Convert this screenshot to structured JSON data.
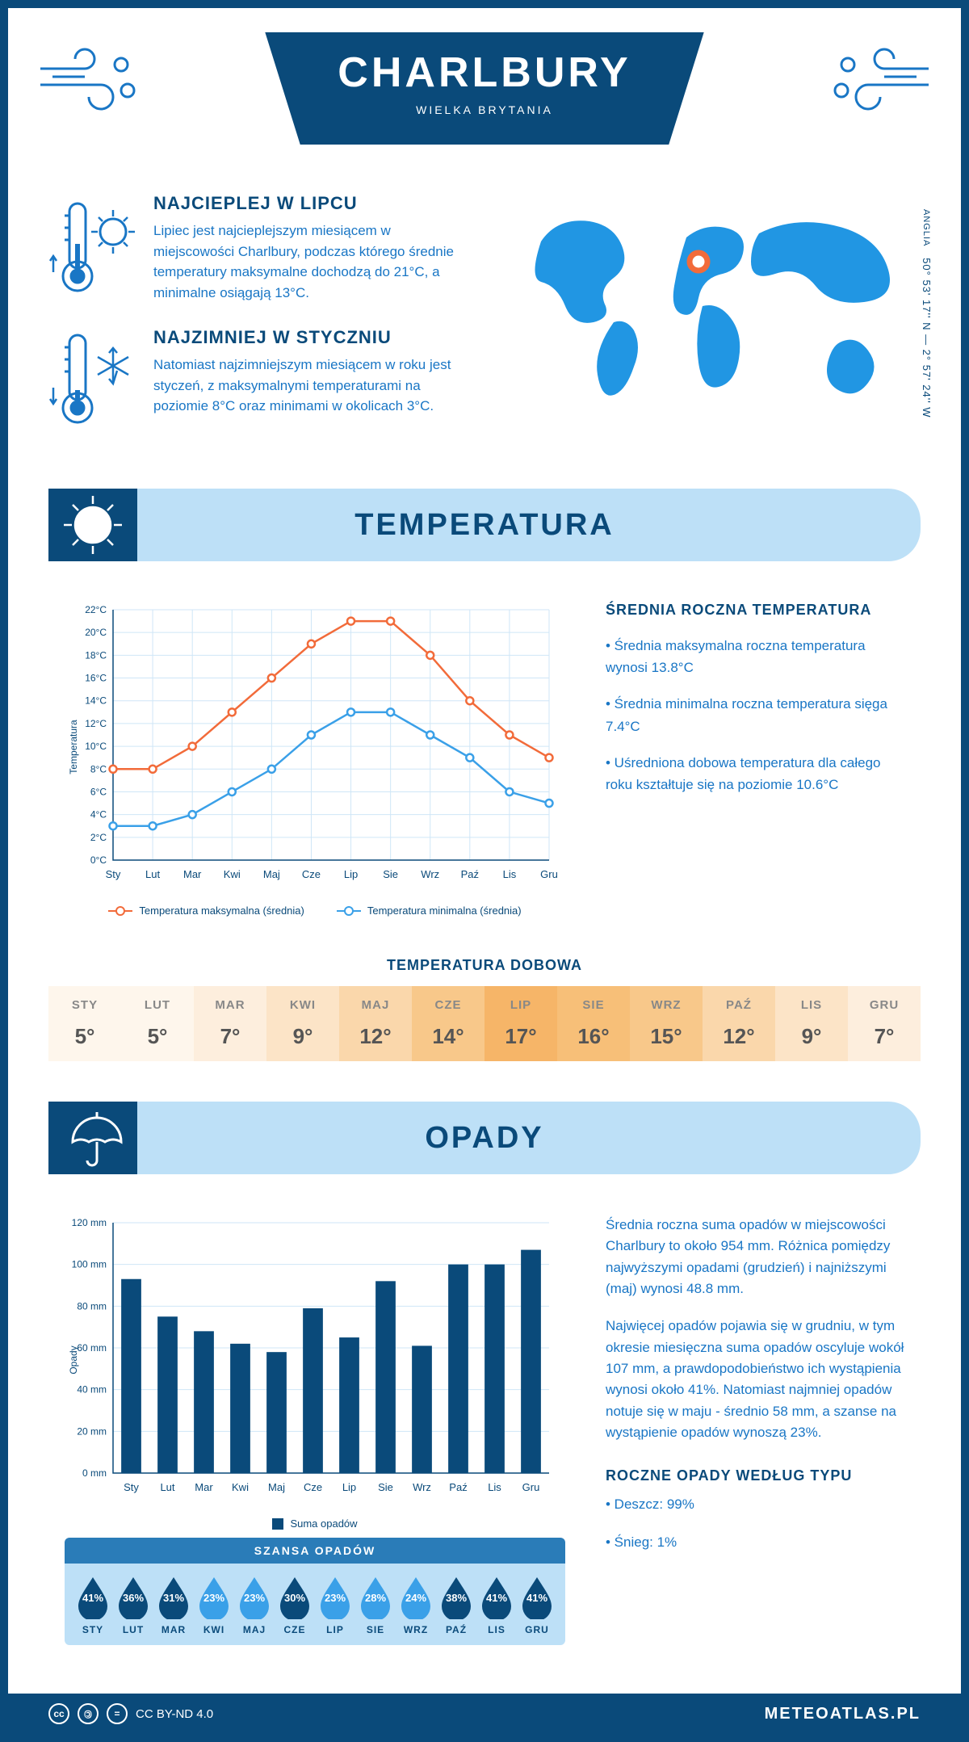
{
  "header": {
    "title": "CHARLBURY",
    "subtitle": "WIELKA BRYTANIA"
  },
  "coords": {
    "text": "50° 53' 17'' N — 2° 57' 24'' W",
    "region": "ANGLIA"
  },
  "warm": {
    "title": "NAJCIEPLEJ W LIPCU",
    "body": "Lipiec jest najcieplejszym miesiącem w miejscowości Charlbury, podczas którego średnie temperatury maksymalne dochodzą do 21°C, a minimalne osiągają 13°C."
  },
  "cold": {
    "title": "NAJZIMNIEJ W STYCZNIU",
    "body": "Natomiast najzimniejszym miesiącem w roku jest styczeń, z maksymalnymi temperaturami na poziomie 8°C oraz minimami w okolicach 3°C."
  },
  "section_temp": "TEMPERATURA",
  "section_precip": "OPADY",
  "months_short": [
    "Sty",
    "Lut",
    "Mar",
    "Kwi",
    "Maj",
    "Cze",
    "Lip",
    "Sie",
    "Wrz",
    "Paź",
    "Lis",
    "Gru"
  ],
  "months_upper": [
    "STY",
    "LUT",
    "MAR",
    "KWI",
    "MAJ",
    "CZE",
    "LIP",
    "SIE",
    "WRZ",
    "PAŹ",
    "LIS",
    "GRU"
  ],
  "temp_chart": {
    "type": "line",
    "y_label": "Temperatura",
    "y_min": 0,
    "y_max": 22,
    "y_step": 2,
    "y_suffix": "°C",
    "series_max": {
      "label": "Temperatura maksymalna (średnia)",
      "color": "#f26b3a",
      "values": [
        8,
        8,
        10,
        13,
        16,
        19,
        21,
        21,
        18,
        14,
        11,
        9
      ]
    },
    "series_min": {
      "label": "Temperatura minimalna (średnia)",
      "color": "#3aa0e8",
      "values": [
        3,
        3,
        4,
        6,
        8,
        11,
        13,
        13,
        11,
        9,
        6,
        5
      ]
    },
    "grid_color": "#cfe6f7",
    "axis_color": "#0a4a7a"
  },
  "temp_stats": {
    "title": "ŚREDNIA ROCZNA TEMPERATURA",
    "lines": [
      "• Średnia maksymalna roczna temperatura wynosi 13.8°C",
      "• Średnia minimalna roczna temperatura sięga 7.4°C",
      "• Uśredniona dobowa temperatura dla całego roku kształtuje się na poziomie 10.6°C"
    ]
  },
  "daily_temp": {
    "title": "TEMPERATURA DOBOWA",
    "values": [
      5,
      5,
      7,
      9,
      12,
      14,
      17,
      16,
      15,
      12,
      9,
      7
    ],
    "suffix": "°",
    "cell_colors": [
      "#fef6ec",
      "#fef6ec",
      "#fdeedd",
      "#fce4c7",
      "#fad7ab",
      "#f8c88a",
      "#f6b568",
      "#f7bf78",
      "#f8c88a",
      "#fad7ab",
      "#fce4c7",
      "#fdeedd"
    ]
  },
  "precip_chart": {
    "type": "bar",
    "y_label": "Opady",
    "y_min": 0,
    "y_max": 120,
    "y_step": 20,
    "y_suffix": " mm",
    "values": [
      93,
      75,
      68,
      62,
      58,
      79,
      65,
      92,
      61,
      100,
      100,
      107
    ],
    "bar_color": "#0a4a7a",
    "grid_color": "#cfe6f7",
    "legend": "Suma opadów"
  },
  "precip_text": {
    "p1": "Średnia roczna suma opadów w miejscowości Charlbury to około 954 mm. Różnica pomiędzy najwyższymi opadami (grudzień) i najniższymi (maj) wynosi 48.8 mm.",
    "p2": "Najwięcej opadów pojawia się w grudniu, w tym okresie miesięczna suma opadów oscyluje wokół 107 mm, a prawdopodobieństwo ich wystąpienia wynosi około 41%. Natomiast najmniej opadów notuje się w maju - średnio 58 mm, a szanse na wystąpienie opadów wynoszą 23%.",
    "type_title": "ROCZNE OPADY WEDŁUG TYPU",
    "type_lines": [
      "• Deszcz: 99%",
      "• Śnieg: 1%"
    ]
  },
  "chance": {
    "title": "SZANSA OPADÓW",
    "values": [
      41,
      36,
      31,
      23,
      23,
      30,
      23,
      28,
      24,
      38,
      41,
      41
    ],
    "color_high": "#0a4a7a",
    "color_low": "#3aa0e8",
    "threshold": 30
  },
  "footer": {
    "license": "CC BY-ND 4.0",
    "brand": "METEOATLAS.PL"
  }
}
